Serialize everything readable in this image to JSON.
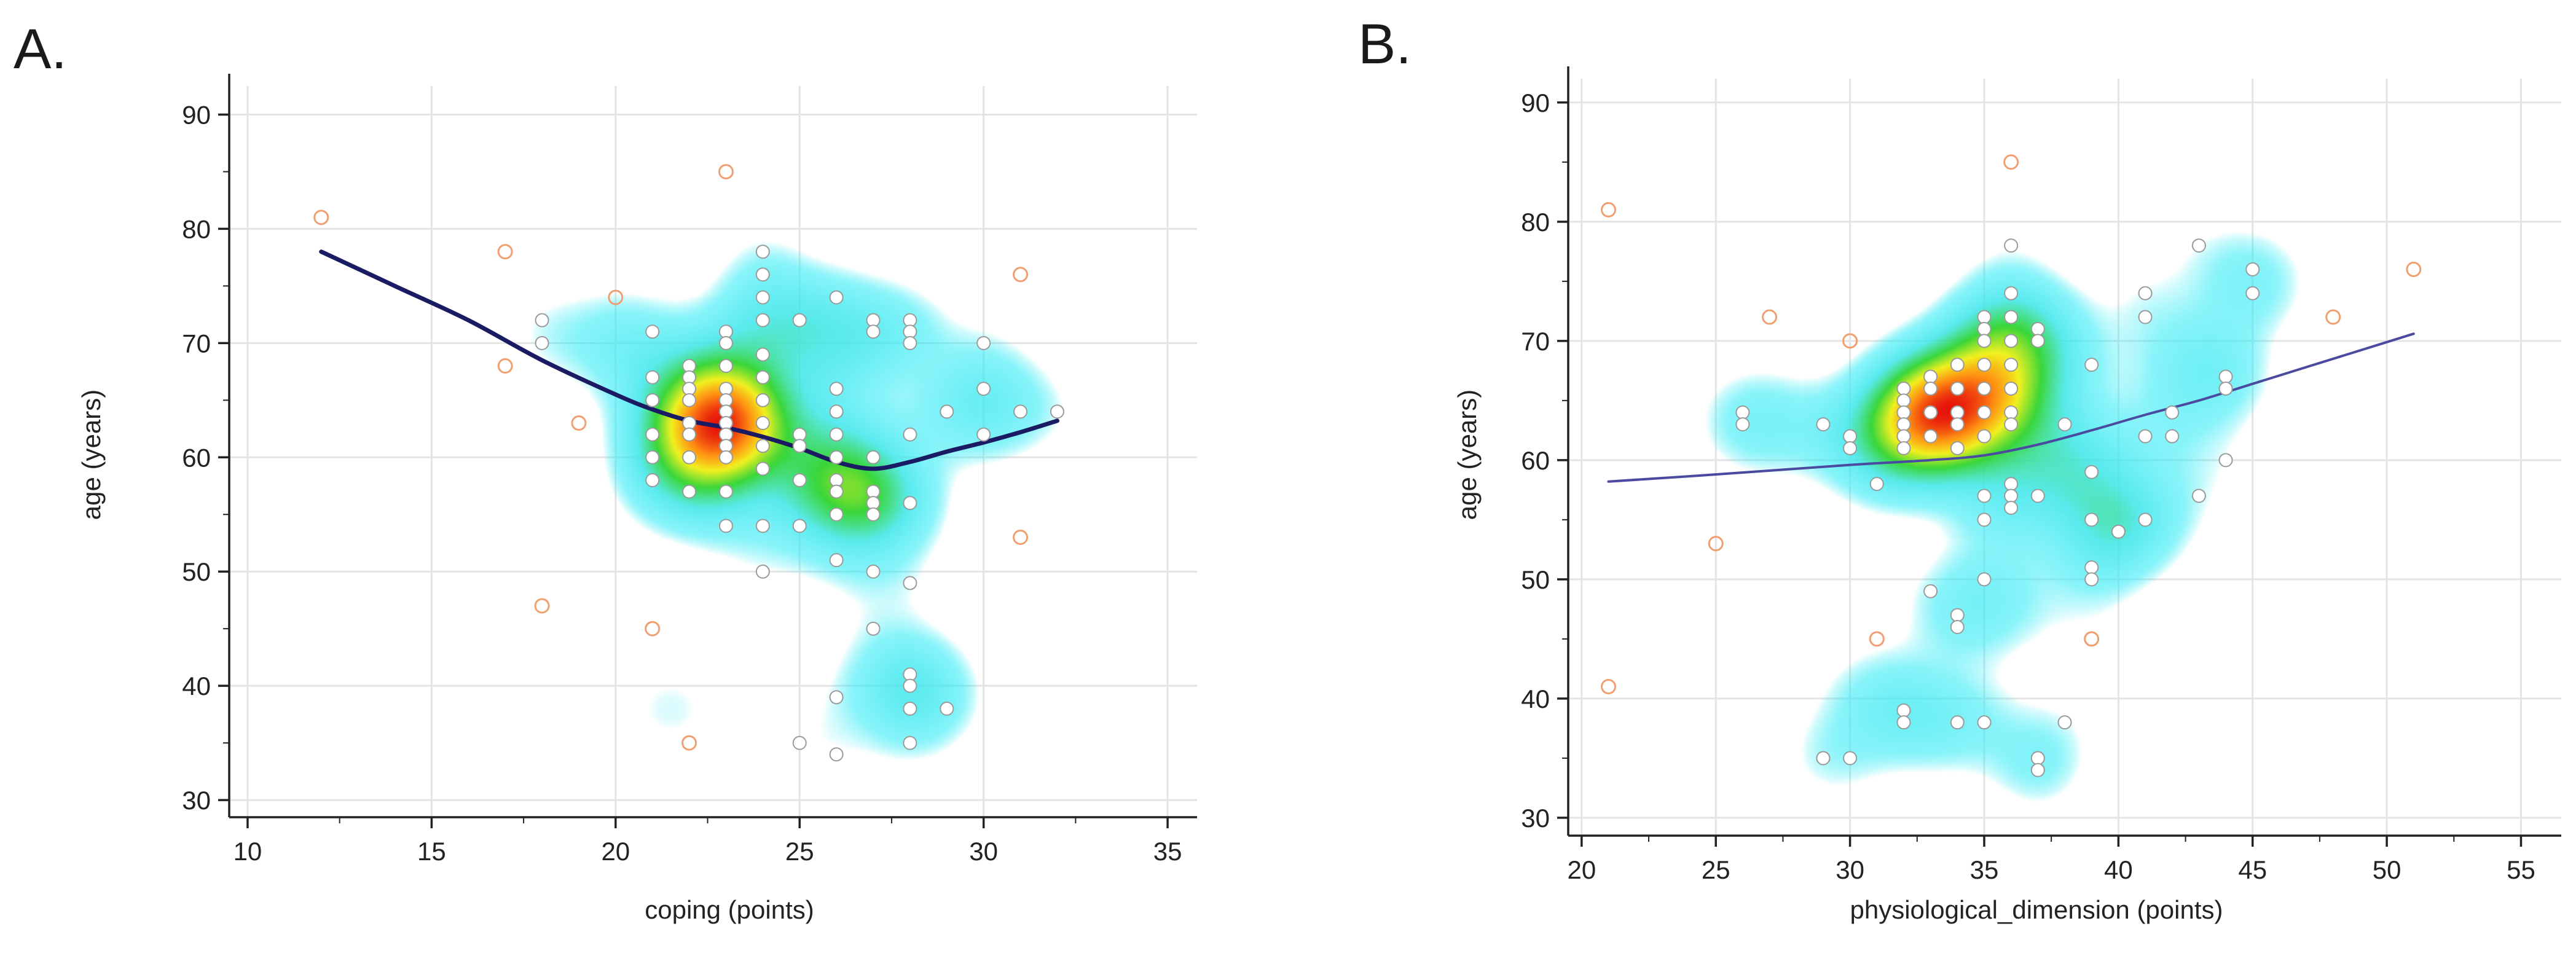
{
  "panels": [
    {
      "letter": "A.",
      "chart_data": {
        "type": "scatter",
        "subtype": "scatter with density heatmap and smoothed trend line",
        "xlabel": "coping (points)",
        "ylabel": "age (years)",
        "xlim": [
          9.5,
          35.8
        ],
        "ylim": [
          28.5,
          92.5
        ],
        "xticks": [
          10,
          15,
          20,
          25,
          30,
          35
        ],
        "yticks": [
          30,
          40,
          50,
          60,
          70,
          80,
          90
        ],
        "grid": true,
        "trend_color": "#1b1b63",
        "trend": {
          "x": [
            12,
            14,
            16,
            18,
            20,
            21,
            22,
            23,
            24,
            25,
            26,
            27,
            28,
            29,
            30,
            31,
            32
          ],
          "y": [
            78,
            75,
            72,
            68.5,
            65.5,
            64.2,
            63.2,
            62.6,
            61.8,
            60.8,
            59.6,
            59.0,
            59.6,
            60.5,
            61.3,
            62.2,
            63.2
          ]
        },
        "outliers": {
          "x": [
            12,
            17,
            18,
            19,
            20,
            21,
            22,
            23,
            31,
            31,
            17
          ],
          "y": [
            81,
            78,
            47,
            63,
            74,
            45,
            35,
            85,
            76,
            53,
            68
          ]
        },
        "points": {
          "x": [
            18,
            18,
            21,
            21,
            21,
            21,
            21,
            21,
            22,
            22,
            22,
            22,
            22,
            22,
            22,
            22,
            23,
            23,
            23,
            23,
            23,
            23,
            23,
            23,
            23,
            23,
            23,
            23,
            24,
            24,
            24,
            24,
            24,
            24,
            24,
            24,
            24,
            24,
            24,
            24,
            25,
            25,
            25,
            25,
            25,
            25,
            26,
            26,
            26,
            26,
            26,
            26,
            26,
            26,
            26,
            26,
            26,
            27,
            27,
            27,
            27,
            27,
            27,
            27,
            27,
            28,
            28,
            28,
            28,
            28,
            28,
            28,
            28,
            28,
            28,
            29,
            29,
            30,
            30,
            30,
            31,
            32
          ],
          "y": [
            72,
            70,
            71,
            67,
            65,
            62,
            60,
            58,
            68,
            67,
            66,
            65,
            63,
            62,
            60,
            57,
            71,
            66,
            65,
            64,
            63,
            62,
            61,
            60,
            57,
            54,
            68,
            70,
            78,
            76,
            74,
            72,
            65,
            63,
            61,
            59,
            54,
            50,
            67,
            69,
            72,
            62,
            61,
            58,
            54,
            35,
            74,
            66,
            62,
            60,
            58,
            57,
            55,
            51,
            39,
            34,
            64,
            72,
            57,
            56,
            55,
            50,
            45,
            71,
            60,
            72,
            71,
            70,
            62,
            56,
            49,
            41,
            40,
            38,
            35,
            64,
            38,
            70,
            66,
            62,
            64,
            64
          ]
        },
        "heat_centers": {
          "x": [
            23,
            22.5,
            26,
            27,
            26,
            22,
            20,
            30,
            28,
            24.5,
            21.5
          ],
          "y": [
            63.5,
            62,
            58,
            56,
            70,
            58,
            70,
            65,
            40,
            72,
            38
          ],
          "weight": [
            1.0,
            0.55,
            0.45,
            0.35,
            0.3,
            0.3,
            0.25,
            0.25,
            0.3,
            0.2,
            0.15
          ]
        }
      }
    },
    {
      "letter": "B.",
      "chart_data": {
        "type": "scatter",
        "subtype": "scatter with density heatmap and smoothed trend line",
        "xlabel": "physiological_dimension (points)",
        "ylabel": "age (years)",
        "xlim": [
          19.5,
          56.5
        ],
        "ylim": [
          28.5,
          92
        ],
        "xticks": [
          20,
          25,
          30,
          35,
          40,
          45,
          50,
          55
        ],
        "yticks": [
          30,
          40,
          50,
          60,
          70,
          80,
          90
        ],
        "grid": true,
        "trend_color": "#4a4aa0",
        "trend": {
          "x": [
            21,
            25,
            30,
            33,
            35,
            37,
            39,
            41,
            43,
            45,
            47,
            49,
            51
          ],
          "y": [
            58.2,
            58.8,
            59.6,
            60.0,
            60.4,
            61.3,
            62.5,
            63.8,
            65.0,
            66.4,
            67.8,
            69.2,
            70.6
          ]
        },
        "outliers": {
          "x": [
            21,
            21,
            25,
            27,
            30,
            31,
            36,
            39,
            48,
            51
          ],
          "y": [
            81,
            41,
            53,
            72,
            70,
            45,
            85,
            45,
            72,
            76
          ]
        },
        "points": {
          "x": [
            26,
            26,
            29,
            29,
            30,
            30,
            31,
            32,
            32,
            32,
            32,
            32,
            32,
            33,
            33,
            33,
            33,
            33,
            34,
            34,
            34,
            34,
            34,
            34,
            34,
            35,
            35,
            35,
            35,
            35,
            35,
            35,
            35,
            35,
            35,
            35,
            36,
            36,
            36,
            36,
            36,
            36,
            36,
            36,
            36,
            36,
            36,
            37,
            37,
            37,
            37,
            37,
            38,
            38,
            39,
            39,
            39,
            39,
            39,
            39,
            40,
            40,
            41,
            41,
            41,
            41,
            42,
            42,
            43,
            43,
            44,
            44,
            44,
            45,
            45,
            32,
            32,
            33,
            34,
            37,
            37,
            30,
            29
          ],
          "y": [
            64,
            63,
            63,
            35,
            62,
            61,
            58,
            66,
            65,
            64,
            63,
            62,
            61,
            67,
            66,
            64,
            62,
            49,
            68,
            66,
            64,
            63,
            61,
            47,
            46,
            72,
            71,
            70,
            68,
            66,
            64,
            62,
            57,
            55,
            50,
            38,
            78,
            74,
            72,
            70,
            68,
            66,
            64,
            63,
            58,
            57,
            56,
            71,
            70,
            57,
            35,
            34,
            63,
            38,
            68,
            59,
            55,
            51,
            50,
            45,
            54,
            54,
            74,
            72,
            62,
            55,
            64,
            62,
            78,
            57,
            67,
            66,
            60,
            76,
            74,
            39,
            38,
            64,
            38,
            35,
            34,
            35,
            35
          ]
        },
        "heat_centers": {
          "x": [
            33.5,
            35.5,
            32,
            38,
            40,
            36.5,
            43,
            31,
            35.5,
            27,
            33.5,
            45
          ],
          "y": [
            64,
            66,
            62,
            60,
            55,
            70,
            68,
            40,
            48,
            63,
            38,
            75
          ],
          "weight": [
            1.0,
            0.6,
            0.45,
            0.35,
            0.35,
            0.35,
            0.25,
            0.2,
            0.2,
            0.2,
            0.15,
            0.15
          ]
        }
      }
    }
  ]
}
